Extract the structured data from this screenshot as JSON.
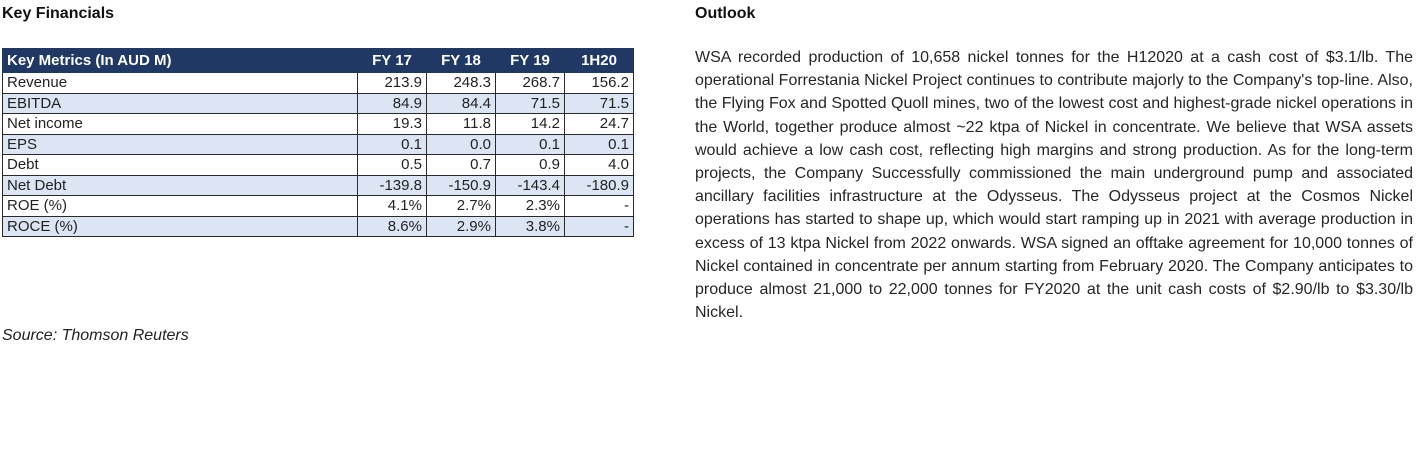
{
  "left_section": {
    "title": "Key Financials",
    "table": {
      "headers": [
        "Key Metrics (In AUD M)",
        "FY 17",
        "FY 18",
        "FY 19",
        "1H20"
      ],
      "rows": [
        {
          "metric": "Revenue",
          "values": [
            "213.9",
            "248.3",
            "268.7",
            "156.2"
          ]
        },
        {
          "metric": "EBITDA",
          "values": [
            "84.9",
            "84.4",
            "71.5",
            "71.5"
          ]
        },
        {
          "metric": "Net income",
          "values": [
            "19.3",
            "11.8",
            "14.2",
            "24.7"
          ]
        },
        {
          "metric": "EPS",
          "values": [
            "0.1",
            "0.0",
            "0.1",
            "0.1"
          ]
        },
        {
          "metric": "Debt",
          "values": [
            "0.5",
            "0.7",
            "0.9",
            "4.0"
          ]
        },
        {
          "metric": "Net Debt",
          "values": [
            "-139.8",
            "-150.9",
            "-143.4",
            "-180.9"
          ]
        },
        {
          "metric": "ROE (%)",
          "values": [
            "4.1%",
            "2.7%",
            "2.3%",
            "-"
          ]
        },
        {
          "metric": "ROCE (%)",
          "values": [
            "8.6%",
            "2.9%",
            "3.8%",
            "-"
          ]
        }
      ]
    },
    "source": "Source: Thomson Reuters"
  },
  "right_section": {
    "title": "Outlook",
    "text": "WSA recorded production of 10,658 nickel tonnes for the H12020 at a cash cost of $3.1/lb. The operational Forrestania Nickel Project continues to contribute majorly to the Company's top-line. Also, the Flying Fox and Spotted Quoll mines, two of the lowest cost and highest-grade nickel operations in the World, together produce almost ~22 ktpa of Nickel in concentrate. We believe that WSA assets would achieve a low cash cost, reflecting high margins and strong production. As for the long-term projects, the Company Successfully commissioned the main underground pump and associated ancillary facilities infrastructure at the Odysseus. The Odysseus project at the Cosmos Nickel operations has started to shape up, which would start ramping up in 2021 with average production in excess of 13 ktpa Nickel from 2022 onwards. WSA signed an offtake agreement for 10,000 tonnes of Nickel contained in concentrate per annum starting from February 2020. The Company anticipates to produce almost 21,000 to 22,000 tonnes for FY2020 at the unit cash costs of $2.90/lb to $3.30/lb Nickel."
  }
}
